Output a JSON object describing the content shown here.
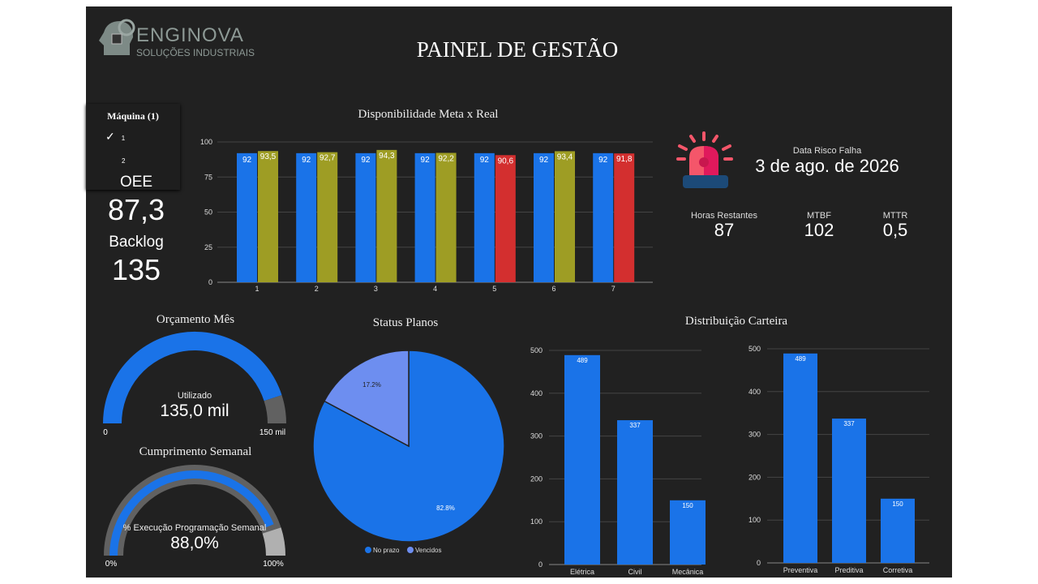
{
  "header": {
    "logo_name": "ENGINOVA",
    "logo_sub": "SOLUÇÕES INDUSTRIAIS",
    "title": "PAINEL DE GESTÃO"
  },
  "filter": {
    "title": "Máquina (1)",
    "options": [
      {
        "label": "1",
        "checked": true
      },
      {
        "label": "2",
        "checked": false
      }
    ]
  },
  "kpis": {
    "oee_label": "OEE",
    "oee_value": "87,3",
    "backlog_label": "Backlog",
    "backlog_value": "135"
  },
  "risk": {
    "icon": "alarm-siren-icon",
    "label": "Data Risco Falha",
    "date": "3 de ago. de 2026",
    "horas_label": "Horas Restantes",
    "horas_value": "87",
    "mtbf_label": "MTBF",
    "mtbf_value": "102",
    "mttr_label": "MTTR",
    "mttr_value": "0,5"
  },
  "colors": {
    "meta": "#1a73e8",
    "real_ok": "#9e9d24",
    "real_bad": "#d32f2f",
    "gauge_bg": "#616161",
    "pie_light": "#6d8ef0"
  },
  "chart_data": [
    {
      "type": "bar",
      "title": "Disponibilidade Meta x Real",
      "categories": [
        "1",
        "2",
        "3",
        "4",
        "5",
        "6",
        "7"
      ],
      "ylim": [
        0,
        100
      ],
      "yticks": [
        0,
        25,
        50,
        75,
        100
      ],
      "grid": true,
      "series": [
        {
          "values": [
            92,
            92,
            92,
            92,
            92,
            92,
            92
          ],
          "labels": [
            "92",
            "92",
            "92",
            "92",
            "92",
            "92",
            "92"
          ]
        },
        {
          "values": [
            93.5,
            92.7,
            94.3,
            92.2,
            90.6,
            93.4,
            91.8
          ],
          "labels": [
            "93,5",
            "92,7",
            "94,3",
            "92,2",
            "90,6",
            "93,4",
            "91,8"
          ],
          "below_meta_color": "#d32f2f"
        }
      ]
    },
    {
      "type": "gauge",
      "title": "Orçamento Mês",
      "label": "Utilizado",
      "value": 135,
      "value_text": "135,0 mil",
      "min_label": "0",
      "max_label": "150 mil",
      "max": 150
    },
    {
      "type": "gauge",
      "title": "Cumprimento Semanal",
      "label": "% Execução Programação Semanal",
      "value": 88,
      "value_text": "88,0%",
      "min_label": "0%",
      "max_label": "100%",
      "max": 100,
      "target_range": [
        90,
        100
      ]
    },
    {
      "type": "pie",
      "title": "Status Planos",
      "slices": [
        {
          "name": "No prazo",
          "value": 82.8,
          "label": "82.8%",
          "color": "#1a73e8"
        },
        {
          "name": "Vencidos",
          "value": 17.2,
          "label": "17.2%",
          "color": "#6d8ef0"
        }
      ],
      "legend": "bottom"
    },
    {
      "type": "bar",
      "title": "Distribuição Carteira",
      "categories": [
        "Elétrica",
        "Civil",
        "Mecânica"
      ],
      "values": [
        489,
        337,
        150
      ],
      "ylim": [
        0,
        500
      ],
      "yticks": [
        0,
        100,
        200,
        300,
        400,
        500
      ],
      "grid": true
    },
    {
      "type": "bar",
      "categories": [
        "Preventiva",
        "Preditiva",
        "Corretiva"
      ],
      "values": [
        489,
        337,
        150
      ],
      "ylim": [
        0,
        500
      ],
      "yticks": [
        0,
        100,
        200,
        300,
        400,
        500
      ],
      "grid": true
    }
  ]
}
